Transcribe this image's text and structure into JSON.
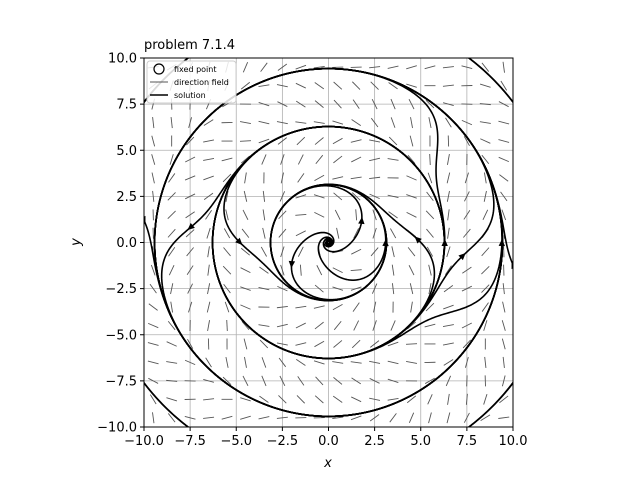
{
  "chart_data": {
    "type": "line",
    "title": "problem 7.1.4",
    "xlabel": "x",
    "ylabel": "y",
    "xlim": [
      -10,
      10
    ],
    "ylim": [
      -10,
      10
    ],
    "xticks": [
      -10,
      -7.5,
      -5,
      -2.5,
      0,
      2.5,
      5,
      7.5,
      10
    ],
    "yticks": [
      -10,
      -7.5,
      -5,
      -2.5,
      0,
      2.5,
      5,
      7.5,
      10
    ],
    "xtick_labels": [
      "−10.0",
      "−7.5",
      "−5.0",
      "−2.5",
      "0.0",
      "2.5",
      "5.0",
      "7.5",
      "10.0"
    ],
    "ytick_labels": [
      "−10.0",
      "−7.5",
      "−5.0",
      "−2.5",
      "0.0",
      "2.5",
      "5.0",
      "7.5",
      "10.0"
    ],
    "grid": true,
    "legend_position": "top-left",
    "legend": [
      {
        "label": "fixed point",
        "marker": "circle"
      },
      {
        "label": "direction field",
        "marker": "line-gray"
      },
      {
        "label": "solution",
        "marker": "line-black"
      }
    ],
    "fixed_points": [
      [
        0,
        0
      ]
    ],
    "limit_cycles_radii": [
      3.14,
      6.28,
      9.42
    ],
    "colors": {
      "solution": "#000000",
      "direction_field": "#555555",
      "grid": "#b0b0b0"
    }
  }
}
